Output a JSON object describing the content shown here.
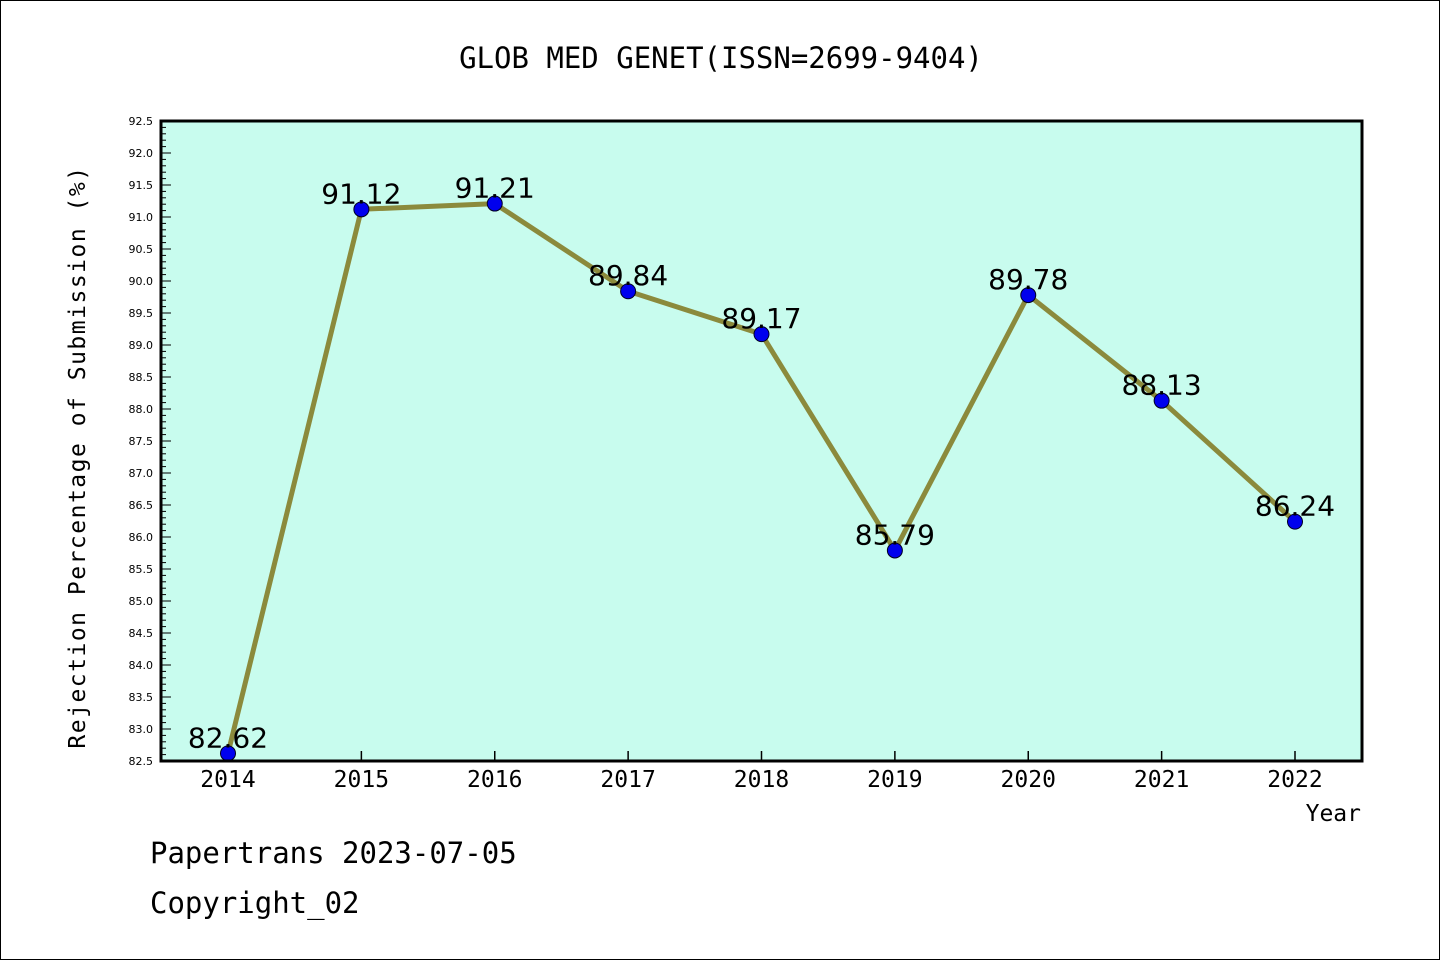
{
  "chart_data": {
    "type": "line",
    "title": "GLOB MED GENET(ISSN=2699-9404)",
    "xlabel": "Year",
    "ylabel": "Rejection Percentage of Submission (%)",
    "categories": [
      "2014",
      "2015",
      "2016",
      "2017",
      "2018",
      "2019",
      "2020",
      "2021",
      "2022"
    ],
    "series": [
      {
        "values": [
          82.62,
          91.12,
          91.21,
          89.84,
          89.17,
          85.79,
          89.78,
          88.13,
          86.24
        ],
        "labels": [
          "82.62",
          "91.12",
          "91.21",
          "89.84",
          "89.17",
          "85.79",
          "89.78",
          "88.13",
          "86.24"
        ]
      }
    ],
    "ylim": [
      82.5,
      92.5
    ],
    "yticks": [
      "82.5",
      "83.0",
      "83.5",
      "84.0",
      "84.5",
      "85.0",
      "85.5",
      "86.0",
      "86.5",
      "87.0",
      "87.5",
      "88.0",
      "88.5",
      "89.0",
      "89.5",
      "90.0",
      "90.5",
      "91.0",
      "91.5",
      "92.0",
      "92.5"
    ],
    "grid": false,
    "colors": {
      "plot_background": "#c8fcee",
      "line": "#8b8a3c",
      "marker": "#0000ee"
    }
  },
  "footer": {
    "line1": "Papertrans 2023-07-05",
    "line2": "Copyright_02"
  }
}
